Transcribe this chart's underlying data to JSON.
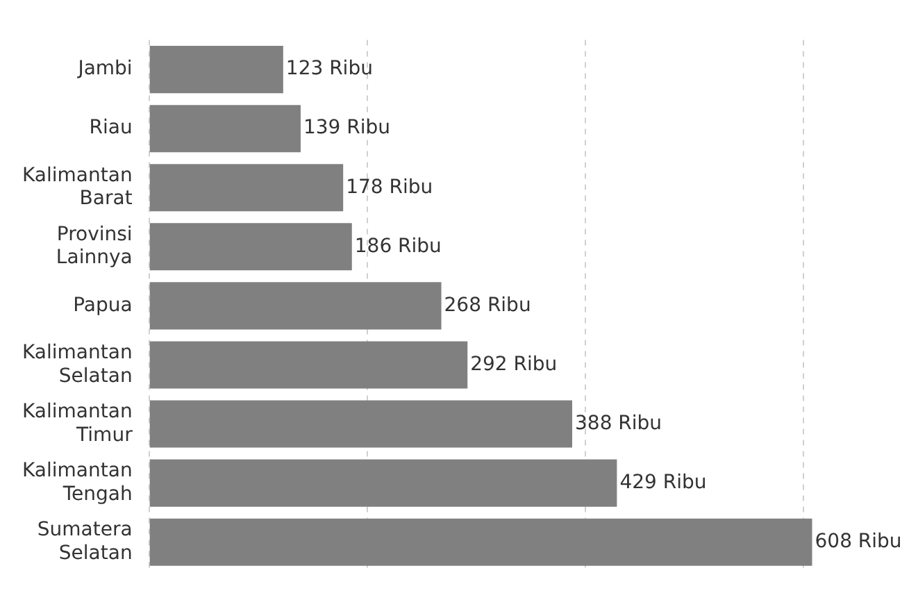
{
  "chart_data": {
    "type": "bar",
    "orientation": "horizontal",
    "categories": [
      "Jambi",
      "Riau",
      "Kalimantan Barat",
      "Provinsi Lainnya",
      "Papua",
      "Kalimantan Selatan",
      "Kalimantan Timur",
      "Kalimantan Tengah",
      "Sumatera Selatan"
    ],
    "values": [
      123,
      139,
      178,
      186,
      268,
      292,
      388,
      429,
      608
    ],
    "value_labels": [
      "123 Ribu",
      "139 Ribu",
      "178 Ribu",
      "186 Ribu",
      "268 Ribu",
      "292 Ribu",
      "388 Ribu",
      "429 Ribu",
      "608 Ribu"
    ],
    "color": "#808080",
    "xticks": [
      {
        "value": 0,
        "label": null
      },
      {
        "value": 200,
        "label": null
      },
      {
        "value": 400,
        "label": null
      },
      {
        "value": 600,
        "label": null
      }
    ],
    "tick_labels": "y",
    "grid": "x",
    "legend": false
  }
}
